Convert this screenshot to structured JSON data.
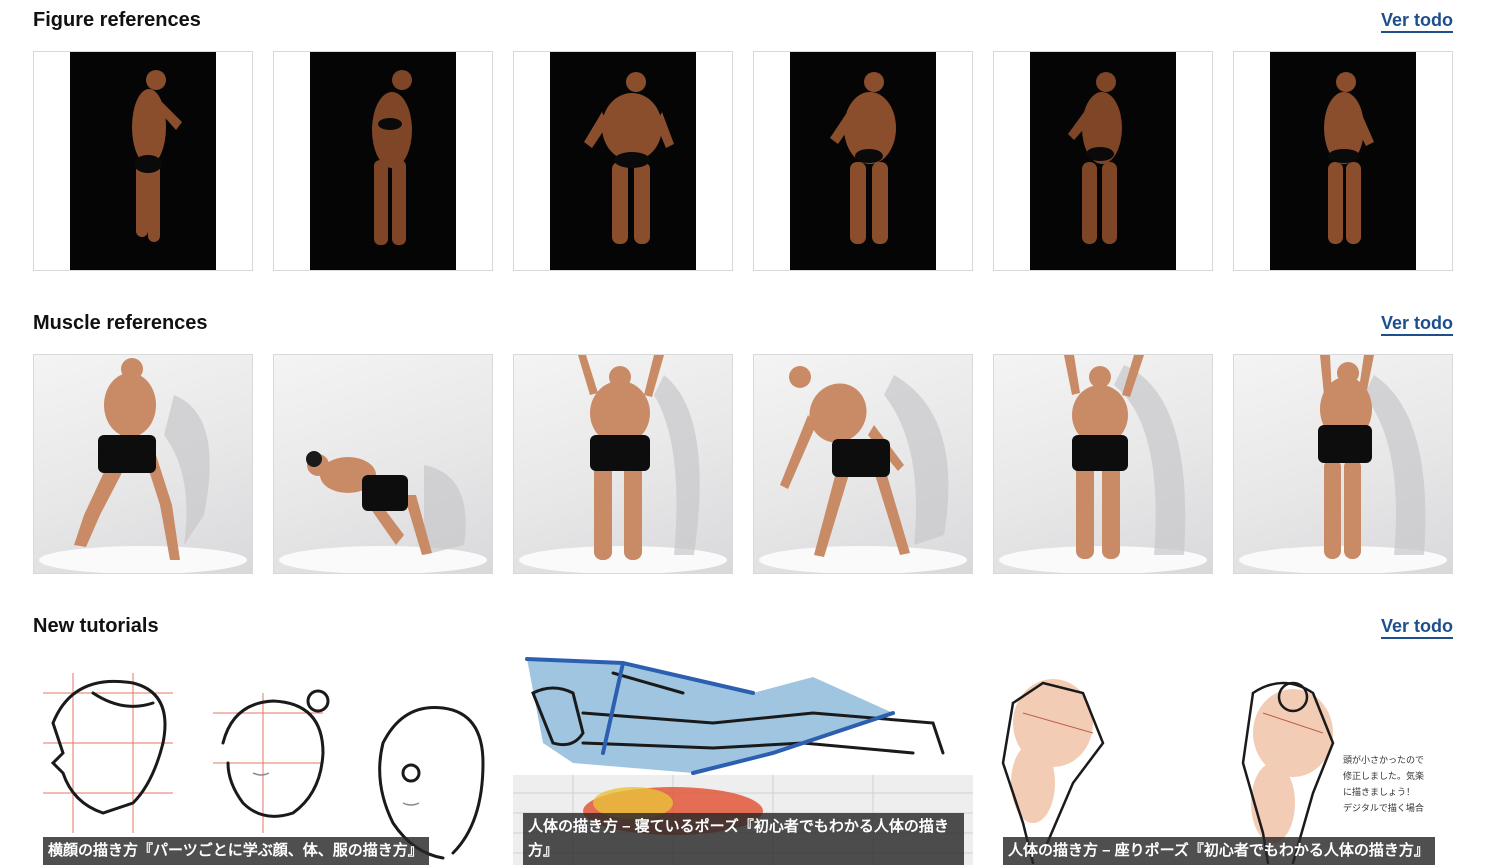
{
  "sections": {
    "figure": {
      "title": "Figure references",
      "link": "Ver todo"
    },
    "muscle": {
      "title": "Muscle references",
      "link": "Ver todo"
    },
    "tutorials": {
      "title": "New tutorials",
      "link": "Ver todo",
      "cards": [
        {
          "caption": "横顔の描き方『パーツごとに学ぶ顔、体、服の描き方』"
        },
        {
          "caption": "人体の描き方 – 寝ているポーズ『初心者でもわかる人体の描き方』"
        },
        {
          "caption": "人体の描き方 – 座りポーズ『初心者でもわかる人体の描き方』"
        }
      ]
    }
  },
  "colors": {
    "link": "#1d4f8c",
    "figure_bg": "#050505",
    "skin": "#a4603a"
  }
}
